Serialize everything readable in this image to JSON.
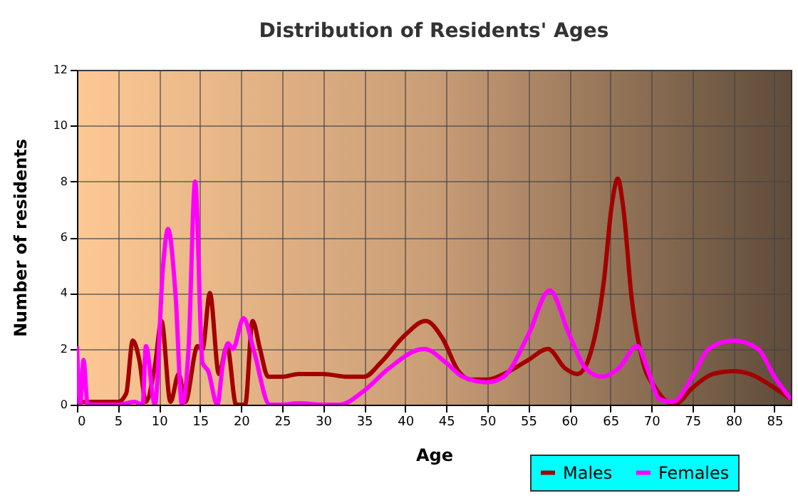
{
  "chart_data": {
    "type": "line",
    "title": "Distribution of Residents' Ages",
    "xlabel": "Age",
    "ylabel": "Number of residents",
    "xlim": [
      0,
      87
    ],
    "ylim": [
      0,
      12
    ],
    "xticks": [
      0,
      5,
      10,
      15,
      20,
      25,
      30,
      35,
      40,
      45,
      50,
      55,
      60,
      65,
      70,
      75,
      80,
      85
    ],
    "yticks": [
      0,
      2,
      4,
      6,
      8,
      10,
      12
    ],
    "grid": true,
    "legend": "bottom right",
    "marker": "none",
    "line_style": "solid",
    "series": [
      {
        "name": "Males",
        "color": "#a30000",
        "x": [
          0,
          5,
          6,
          6.8,
          7.6,
          8.4,
          9.5,
          10.3,
          11.4,
          12.4,
          13.2,
          14.7,
          15.3,
          16.2,
          17.3,
          18.3,
          19.4,
          20.5,
          21.4,
          22.3,
          23.3,
          25,
          27,
          30,
          33,
          35,
          37,
          40,
          42.5,
          44.5,
          46.5,
          48,
          50,
          52,
          55,
          57.4,
          59.5,
          61,
          62.3,
          64.2,
          65.2,
          65.9,
          66.6,
          67.6,
          69,
          70.5,
          72,
          73,
          75,
          77.5,
          80,
          82,
          84.5,
          87
        ],
        "values": [
          0.1,
          0.1,
          0.4,
          2.3,
          1.6,
          0.1,
          1.4,
          3.0,
          0.1,
          1.1,
          0.1,
          2.1,
          2.0,
          4.0,
          1.1,
          2.1,
          0.0,
          0.0,
          3.0,
          2.0,
          1.0,
          1.0,
          1.1,
          1.1,
          1.0,
          1.0,
          1.5,
          2.5,
          3.0,
          2.4,
          1.2,
          0.9,
          0.9,
          1.1,
          1.6,
          2.0,
          1.3,
          1.1,
          1.6,
          4.4,
          7.2,
          8.1,
          7.0,
          3.8,
          1.5,
          0.6,
          0.1,
          0.05,
          0.6,
          1.1,
          1.2,
          1.1,
          0.7,
          0.2
        ]
      },
      {
        "name": "Females",
        "color": "#ff00ff",
        "x": [
          0,
          0.4,
          0.8,
          1.3,
          5,
          7,
          8,
          8.4,
          9.5,
          10.5,
          11.1,
          12,
          12.8,
          13.6,
          14.4,
          15.3,
          16,
          17.1,
          17.8,
          18.4,
          19,
          20.3,
          21.5,
          23.5,
          25,
          27,
          30,
          32,
          35,
          38,
          42.3,
          45,
          47,
          50,
          52,
          55,
          57.6,
          60,
          62,
          64,
          66,
          68.3,
          69.5,
          71,
          72.6,
          75,
          77,
          80,
          83,
          85,
          87
        ],
        "values": [
          2.1,
          0.0,
          1.6,
          0.0,
          0.0,
          0.1,
          0.0,
          2.1,
          0.0,
          5.0,
          6.3,
          4.0,
          0.0,
          2.0,
          8.0,
          1.5,
          1.2,
          0.0,
          1.5,
          2.2,
          2.0,
          3.1,
          2.0,
          0.0,
          0.0,
          0.05,
          0.0,
          0.0,
          0.5,
          1.3,
          2.0,
          1.5,
          1.0,
          0.8,
          1.0,
          2.5,
          4.1,
          2.5,
          1.3,
          1.0,
          1.3,
          2.1,
          1.3,
          0.2,
          0.1,
          1.0,
          2.0,
          2.3,
          2.0,
          1.0,
          0.2
        ]
      }
    ]
  }
}
